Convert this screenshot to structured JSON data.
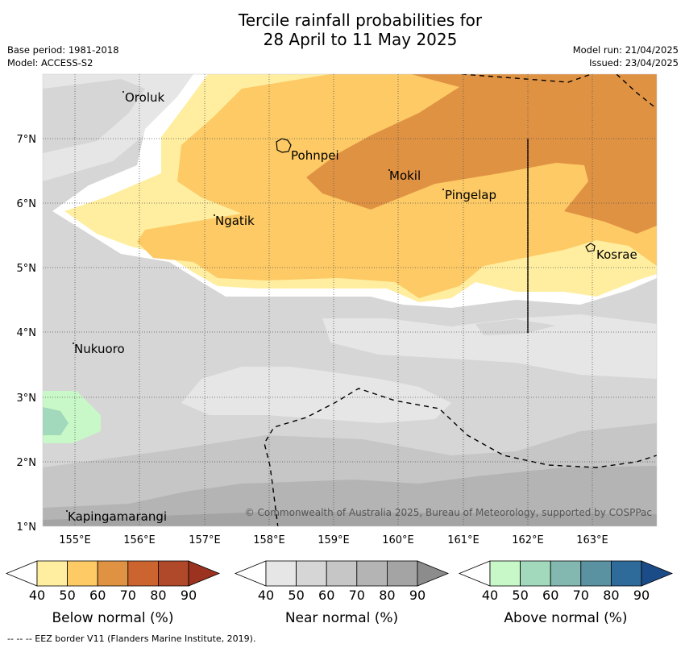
{
  "title": {
    "line1": "Tercile rainfall probabilities for",
    "line2": "28 April to 11 May 2025"
  },
  "meta": {
    "base_period": "Base period: 1981-2018",
    "model": "Model: ACCESS-S2",
    "model_run": "Model run: 21/04/2025",
    "issued": "Issued: 23/04/2025"
  },
  "map": {
    "lat_labels": [
      "7°N",
      "6°N",
      "5°N",
      "4°N",
      "3°N",
      "2°N",
      "1°N"
    ],
    "lon_labels": [
      "155°E",
      "156°E",
      "157°E",
      "158°E",
      "159°E",
      "160°E",
      "161°E",
      "162°E",
      "163°E"
    ],
    "places": [
      "Oroluk",
      "Pohnpei",
      "Mokil",
      "Pingelap",
      "Ngatik",
      "Kosrae",
      "Nukuoro",
      "Kapingamarangi"
    ],
    "copyright": "© Commonwealth of Australia 2025, Bureau of Meteorology, supported by COSPPac"
  },
  "colorbars": [
    {
      "title": "Below normal (%)",
      "ticks": [
        "40",
        "50",
        "60",
        "70",
        "80",
        "90"
      ],
      "colors": [
        "#ffeea0",
        "#fdca65",
        "#e09243",
        "#cc6430",
        "#b0482a",
        "#9c3220"
      ]
    },
    {
      "title": "Near normal (%)",
      "ticks": [
        "40",
        "50",
        "60",
        "70",
        "80",
        "90"
      ],
      "colors": [
        "#e6e6e6",
        "#d6d6d6",
        "#c6c6c6",
        "#b4b4b4",
        "#a4a4a4",
        "#8c8c8c"
      ]
    },
    {
      "title": "Above normal (%)",
      "ticks": [
        "40",
        "50",
        "60",
        "70",
        "80",
        "90"
      ],
      "colors": [
        "#c8f8c8",
        "#a2d8bc",
        "#82b8b0",
        "#5a92a2",
        "#2e6a9a",
        "#1c4c88"
      ]
    }
  ],
  "footer": "--  --  -- EEZ border V11 (Flanders Marine Institute, 2019)."
}
